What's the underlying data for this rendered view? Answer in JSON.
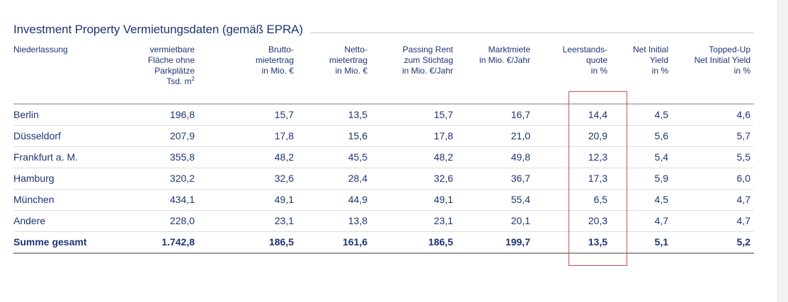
{
  "title": "Investment Property Vermietungsdaten (gemäß EPRA)",
  "columns": [
    {
      "lines": [
        "Niederlassung"
      ]
    },
    {
      "lines": [
        "vermietbare",
        "Fläche ohne",
        "Parkplätze",
        "Tsd. m"
      ],
      "sup": "2"
    },
    {
      "lines": [
        "Brutto-",
        "mietertrag",
        "in Mio. €"
      ]
    },
    {
      "lines": [
        "Netto-",
        "mietertrag",
        "in Mio. €"
      ]
    },
    {
      "lines": [
        "Passing Rent",
        "zum Stichtag",
        "in Mio. €/Jahr"
      ]
    },
    {
      "lines": [
        "Marktmiete",
        "in Mio. €/Jahr"
      ]
    },
    {
      "lines": [
        "Leerstands-",
        "quote",
        "in %"
      ]
    },
    {
      "lines": [
        "Net Initial",
        "Yield",
        "in %"
      ]
    },
    {
      "lines": [
        "Topped-Up",
        "Net Initial Yield",
        "in %"
      ]
    }
  ],
  "rows": [
    [
      "Berlin",
      "196,8",
      "15,7",
      "13,5",
      "15,7",
      "16,7",
      "14,4",
      "4,5",
      "4,6"
    ],
    [
      "Düsseldorf",
      "207,9",
      "17,8",
      "15,6",
      "17,8",
      "21,0",
      "20,9",
      "5,6",
      "5,7"
    ],
    [
      "Frankfurt a. M.",
      "355,8",
      "48,2",
      "45,5",
      "48,2",
      "49,8",
      "12,3",
      "5,4",
      "5,5"
    ],
    [
      "Hamburg",
      "320,2",
      "32,6",
      "28,4",
      "32,6",
      "36,7",
      "17,3",
      "5,9",
      "6,0"
    ],
    [
      "München",
      "434,1",
      "49,1",
      "44,9",
      "49,1",
      "55,4",
      "6,5",
      "4,5",
      "4,7"
    ],
    [
      "Andere",
      "228,0",
      "23,1",
      "13,8",
      "23,1",
      "20,1",
      "20,3",
      "4,7",
      "4,7"
    ]
  ],
  "total": [
    "Summe gesamt",
    "1.742,8",
    "186,5",
    "161,6",
    "186,5",
    "199,7",
    "13,5",
    "5,1",
    "5,2"
  ],
  "colors": {
    "text": "#1e3475",
    "highlight": "#d94a4a"
  }
}
